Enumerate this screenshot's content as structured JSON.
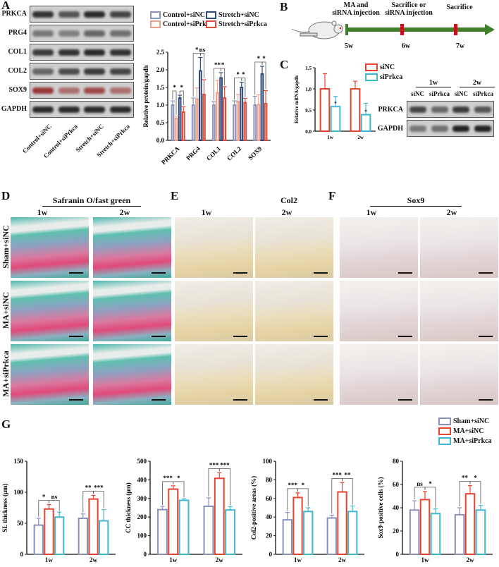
{
  "panels": {
    "a": "A",
    "b": "B",
    "c": "C",
    "d": "D",
    "e": "E",
    "f": "F",
    "g": "G"
  },
  "panel_a": {
    "blot_rows": [
      "PRKCA",
      "PRG4",
      "COL1",
      "COL2",
      "SOX9",
      "GAPDH"
    ],
    "lanes": [
      "Control+siNC",
      "Control+siPrkca",
      "Stretch+siNC",
      "Stretch+siPrkca"
    ]
  },
  "panel_b": {
    "events": [
      "MA and\nsiRNA injection",
      "Sacrifice or\nsiRNA injection",
      "Sacrifice"
    ],
    "weeks": [
      "5w",
      "6w",
      "7w"
    ]
  },
  "panel_c_blot": {
    "groups": [
      "1w",
      "2w"
    ],
    "lanes": [
      "siNC",
      "siPrkca",
      "siNC",
      "siPrkca"
    ],
    "rows": [
      "PRKCA",
      "GAPDH"
    ]
  },
  "histology": {
    "d_title": "Safranin O/fast green",
    "e_title": "Col2",
    "f_title": "Sox9",
    "timepoints": [
      "1w",
      "2w"
    ],
    "rows": [
      "Sham+siNC",
      "MA+siNC",
      "MA+siPrkca"
    ]
  },
  "colors": {
    "sham": "#8a90b8",
    "ma": "#e8432f",
    "siprkca": "#3fb8d0",
    "ctrl_sinc": "#8b93b8",
    "ctrl_siprkca": "#f0a08c",
    "str_sinc": "#2f4a7a",
    "str_siprkca": "#e04a3a",
    "green": "#3f7f2a"
  },
  "chart_data": [
    {
      "type": "bar",
      "id": "A",
      "ylabel": "Relative protein/gapdh",
      "ylim": [
        0,
        2.5
      ],
      "yticks": [
        "0.0",
        "0.5",
        "1.0",
        "1.5",
        "2.0",
        "2.5"
      ],
      "categories": [
        "PRKCA",
        "PRG4",
        "COL1",
        "COL2",
        "SOX9"
      ],
      "rotate_x": true,
      "series": [
        {
          "name": "Control+siNC",
          "color": "#8b93b8",
          "values": [
            1.0,
            1.0,
            1.0,
            1.0,
            1.0
          ],
          "err": [
            0.12,
            0.2,
            0.1,
            0.12,
            0.25
          ]
        },
        {
          "name": "Control+siPrkca",
          "color": "#f0a08c",
          "values": [
            0.62,
            1.17,
            1.35,
            1.1,
            1.01
          ],
          "err": [
            0.07,
            0.32,
            0.35,
            0.2,
            0.28
          ]
        },
        {
          "name": "Stretch+siNC",
          "color": "#2f4a7a",
          "values": [
            1.2,
            1.97,
            1.77,
            1.5,
            1.88
          ],
          "err": [
            0.08,
            0.38,
            0.15,
            0.15,
            0.22
          ]
        },
        {
          "name": "Stretch+siPrkca",
          "color": "#e04a3a",
          "values": [
            0.8,
            1.3,
            1.2,
            1.07,
            1.04
          ],
          "err": [
            0.15,
            0.42,
            0.32,
            0.12,
            0.37
          ]
        }
      ],
      "annotations": [
        {
          "g": 0,
          "a": 0,
          "b": 1,
          "t": "*"
        },
        {
          "g": 0,
          "a": 2,
          "b": 3,
          "t": "*"
        },
        {
          "g": 1,
          "a": 0,
          "b": 2,
          "t": "*"
        },
        {
          "g": 1,
          "a": 2,
          "b": 3,
          "t": "ns"
        },
        {
          "g": 2,
          "a": 0,
          "b": 2,
          "t": "**"
        },
        {
          "g": 2,
          "a": 2,
          "b": 3,
          "t": "*"
        },
        {
          "g": 3,
          "a": 0,
          "b": 2,
          "t": "*"
        },
        {
          "g": 3,
          "a": 2,
          "b": 3,
          "t": "*"
        },
        {
          "g": 4,
          "a": 0,
          "b": 2,
          "t": "*"
        },
        {
          "g": 4,
          "a": 2,
          "b": 3,
          "t": "*"
        }
      ]
    },
    {
      "type": "bar",
      "id": "C",
      "ylabel": "Relative mRNA/gapdh",
      "ylim": [
        0,
        1.5
      ],
      "yticks": [
        "0.0",
        "0.5",
        "1.0",
        "1.5"
      ],
      "categories": [
        "1w",
        "2w"
      ],
      "series": [
        {
          "name": "siNC",
          "color": "#e8432f",
          "values": [
            1.0,
            1.0
          ],
          "err": [
            0.36,
            0.18
          ]
        },
        {
          "name": "siPrkca",
          "color": "#3fb8d0",
          "values": [
            0.58,
            0.39
          ],
          "err": [
            0.24,
            0.27
          ]
        }
      ],
      "annotations": [
        {
          "g": 0,
          "a": 1,
          "b": 1,
          "t": "*"
        },
        {
          "g": 1,
          "a": 1,
          "b": 1,
          "t": "*"
        }
      ]
    },
    {
      "type": "bar",
      "id": "G1",
      "ylabel": "SL thickness (μm)",
      "ylim": [
        0,
        150
      ],
      "yticks": [
        "0",
        "50",
        "100",
        "150"
      ],
      "categories": [
        "1w",
        "2w"
      ],
      "series": [
        {
          "name": "Sham+siNC",
          "color": "#8a90b8",
          "values": [
            47,
            58
          ],
          "err": [
            11,
            7
          ]
        },
        {
          "name": "MA+siNC",
          "color": "#e8432f",
          "values": [
            73,
            89
          ],
          "err": [
            7,
            6
          ]
        },
        {
          "name": "MA+siPrkca",
          "color": "#3fb8d0",
          "values": [
            60,
            54
          ],
          "err": [
            8,
            18
          ]
        }
      ],
      "annotations": [
        {
          "g": 0,
          "a": 0,
          "b": 1,
          "t": "*"
        },
        {
          "g": 0,
          "a": 1,
          "b": 2,
          "t": "ns"
        },
        {
          "g": 1,
          "a": 0,
          "b": 1,
          "t": "**"
        },
        {
          "g": 1,
          "a": 1,
          "b": 2,
          "t": "***"
        }
      ]
    },
    {
      "type": "bar",
      "id": "G2",
      "ylabel": "CC thickness (μm)",
      "ylim": [
        0,
        500
      ],
      "yticks": [
        "0",
        "100",
        "200",
        "300",
        "400",
        "500"
      ],
      "categories": [
        "1w",
        "2w"
      ],
      "series": [
        {
          "name": "Sham+siNC",
          "color": "#8a90b8",
          "values": [
            240,
            258
          ],
          "err": [
            17,
            45
          ]
        },
        {
          "name": "MA+siNC",
          "color": "#e8432f",
          "values": [
            350,
            408
          ],
          "err": [
            18,
            30
          ]
        },
        {
          "name": "MA+siPrkca",
          "color": "#3fb8d0",
          "values": [
            290,
            238
          ],
          "err": [
            8,
            18
          ]
        }
      ],
      "annotations": [
        {
          "g": 0,
          "a": 0,
          "b": 1,
          "t": "***"
        },
        {
          "g": 0,
          "a": 1,
          "b": 2,
          "t": "*"
        },
        {
          "g": 1,
          "a": 0,
          "b": 1,
          "t": "***"
        },
        {
          "g": 1,
          "a": 1,
          "b": 2,
          "t": "***"
        }
      ]
    },
    {
      "type": "bar",
      "id": "G3",
      "ylabel": "Col2-positive areas (%)",
      "ylim": [
        0,
        100
      ],
      "yticks": [
        "0",
        "20",
        "40",
        "60",
        "80",
        "100"
      ],
      "categories": [
        "1w",
        "2w"
      ],
      "series": [
        {
          "name": "Sham+siNC",
          "color": "#8a90b8",
          "values": [
            37,
            39
          ],
          "err": [
            8,
            3
          ]
        },
        {
          "name": "MA+siNC",
          "color": "#e8432f",
          "values": [
            61,
            67
          ],
          "err": [
            5,
            10
          ]
        },
        {
          "name": "MA+siPrkca",
          "color": "#3fb8d0",
          "values": [
            46,
            46
          ],
          "err": [
            4,
            6
          ]
        }
      ],
      "annotations": [
        {
          "g": 0,
          "a": 0,
          "b": 1,
          "t": "***"
        },
        {
          "g": 0,
          "a": 1,
          "b": 2,
          "t": "*"
        },
        {
          "g": 1,
          "a": 0,
          "b": 1,
          "t": "***"
        },
        {
          "g": 1,
          "a": 1,
          "b": 2,
          "t": "**"
        }
      ]
    },
    {
      "type": "bar",
      "id": "G4",
      "ylabel": "Sox9-positive cells (%)",
      "ylim": [
        0,
        80
      ],
      "yticks": [
        "0",
        "20",
        "40",
        "60",
        "80"
      ],
      "categories": [
        "1w",
        "2w"
      ],
      "series": [
        {
          "name": "Sham+siNC",
          "color": "#8a90b8",
          "values": [
            38,
            34
          ],
          "err": [
            8,
            6
          ]
        },
        {
          "name": "MA+siNC",
          "color": "#e8432f",
          "values": [
            47,
            52
          ],
          "err": [
            7,
            7
          ]
        },
        {
          "name": "MA+siPrkca",
          "color": "#3fb8d0",
          "values": [
            35,
            38
          ],
          "err": [
            4,
            4
          ]
        }
      ],
      "annotations": [
        {
          "g": 0,
          "a": 0,
          "b": 1,
          "t": "ns"
        },
        {
          "g": 0,
          "a": 1,
          "b": 2,
          "t": "*"
        },
        {
          "g": 1,
          "a": 0,
          "b": 1,
          "t": "**"
        },
        {
          "g": 1,
          "a": 1,
          "b": 2,
          "t": "*"
        }
      ]
    }
  ]
}
